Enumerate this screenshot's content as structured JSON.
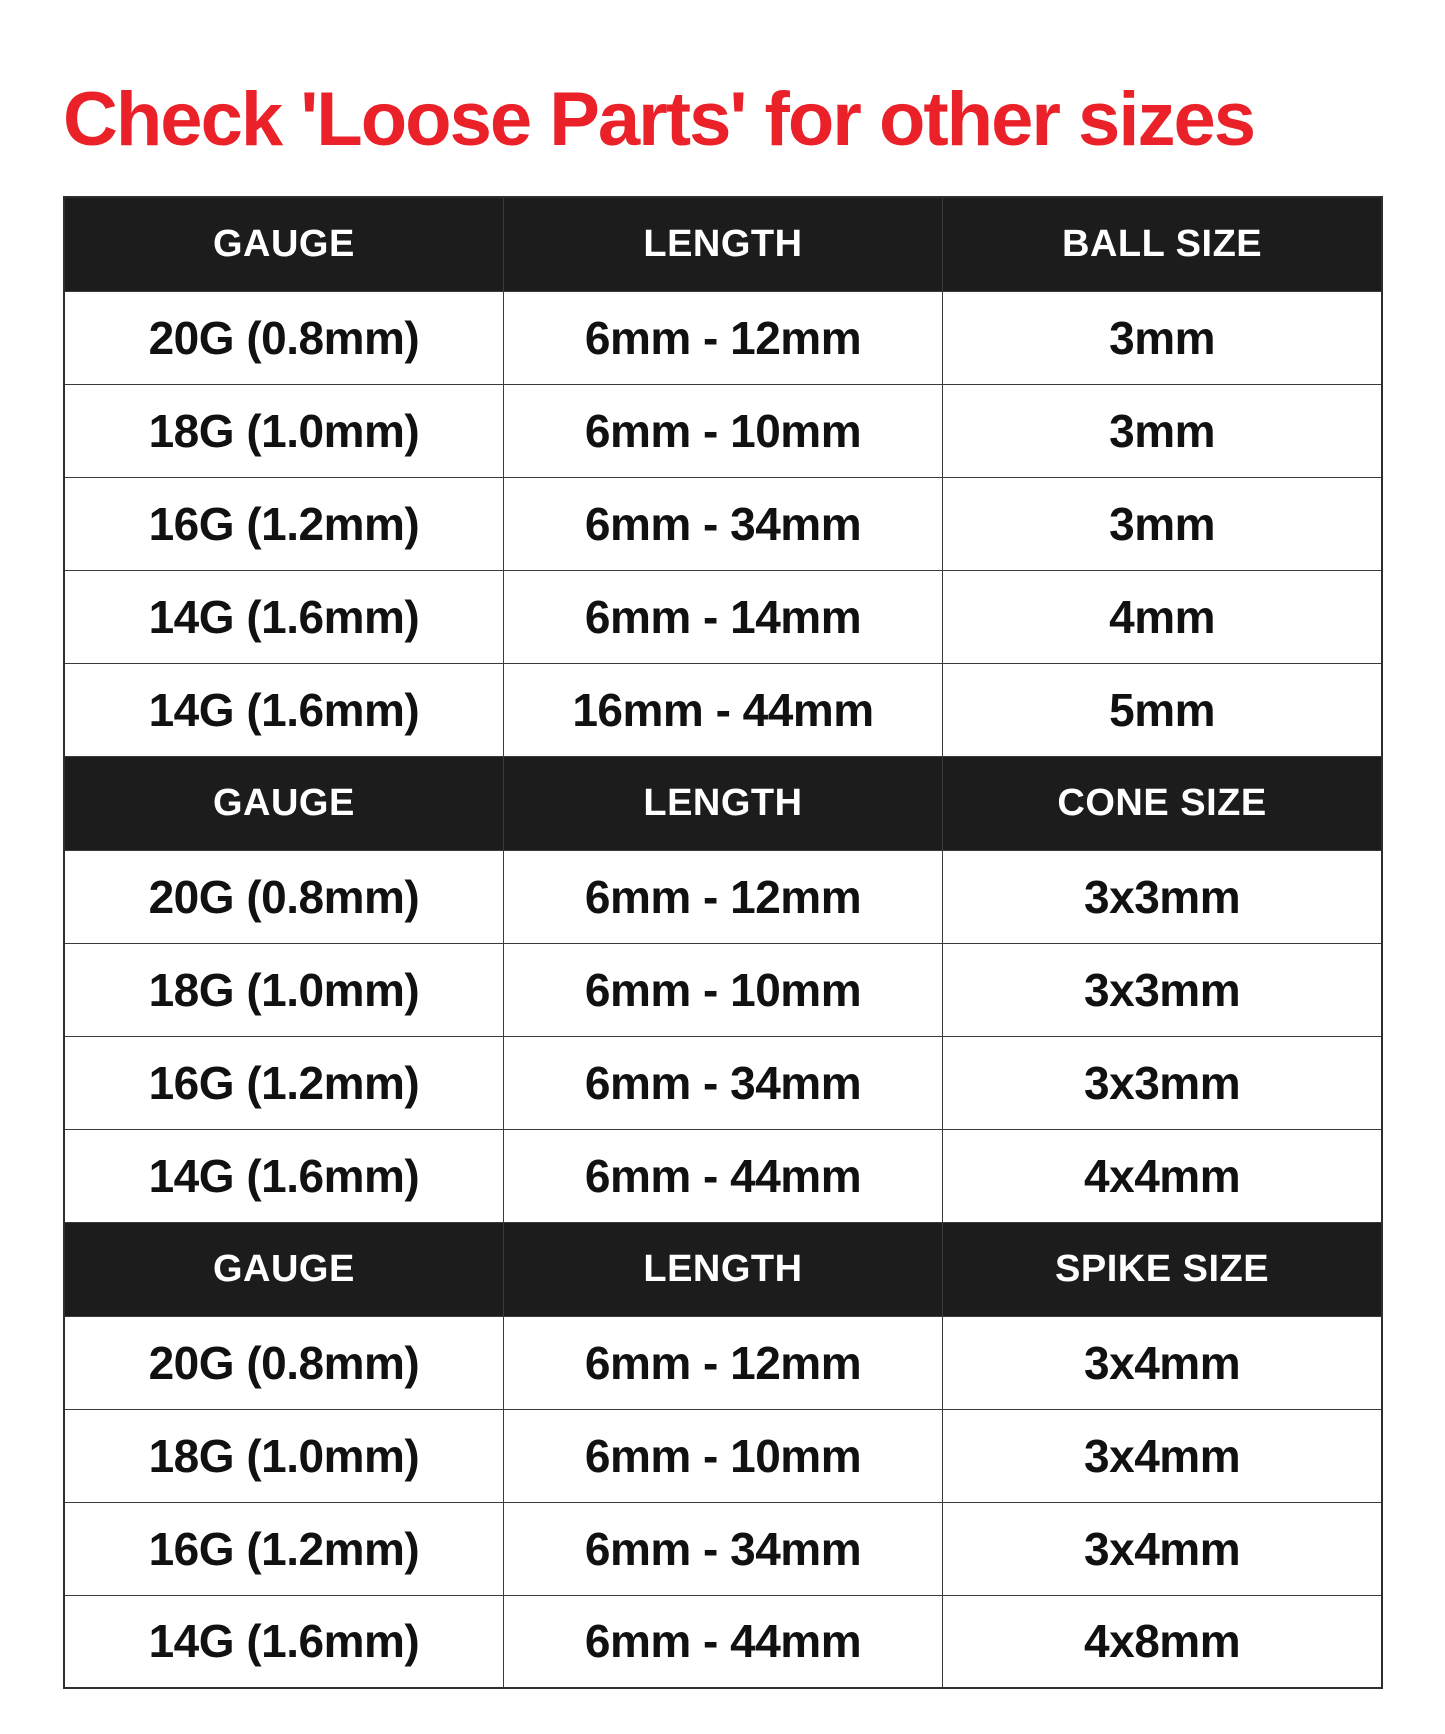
{
  "title": {
    "text": "Check 'Loose Parts' for other sizes"
  },
  "colors": {
    "background": "#ffffff",
    "title_red": "#ea2128",
    "header_bg": "#1c1c1c",
    "header_text": "#ffffff",
    "cell_text": "#111111",
    "border": "#3a3a3a",
    "outer_border": "#2e2e2e"
  },
  "tables": [
    {
      "headers": [
        "GAUGE",
        "LENGTH",
        "BALL SIZE"
      ],
      "rows": [
        [
          "20G (0.8mm)",
          "6mm - 12mm",
          "3mm"
        ],
        [
          "18G (1.0mm)",
          "6mm - 10mm",
          "3mm"
        ],
        [
          "16G (1.2mm)",
          "6mm - 34mm",
          "3mm"
        ],
        [
          "14G (1.6mm)",
          "6mm - 14mm",
          "4mm"
        ],
        [
          "14G (1.6mm)",
          "16mm - 44mm",
          "5mm"
        ]
      ]
    },
    {
      "headers": [
        "GAUGE",
        "LENGTH",
        "CONE SIZE"
      ],
      "rows": [
        [
          "20G (0.8mm)",
          "6mm - 12mm",
          "3x3mm"
        ],
        [
          "18G (1.0mm)",
          "6mm - 10mm",
          "3x3mm"
        ],
        [
          "16G (1.2mm)",
          "6mm - 34mm",
          "3x3mm"
        ],
        [
          "14G (1.6mm)",
          "6mm - 44mm",
          "4x4mm"
        ]
      ]
    },
    {
      "headers": [
        "GAUGE",
        "LENGTH",
        "SPIKE SIZE"
      ],
      "rows": [
        [
          "20G (0.8mm)",
          "6mm - 12mm",
          "3x4mm"
        ],
        [
          "18G (1.0mm)",
          "6mm - 10mm",
          "3x4mm"
        ],
        [
          "16G (1.2mm)",
          "6mm - 34mm",
          "3x4mm"
        ],
        [
          "14G (1.6mm)",
          "6mm - 44mm",
          "4x8mm"
        ]
      ]
    }
  ]
}
